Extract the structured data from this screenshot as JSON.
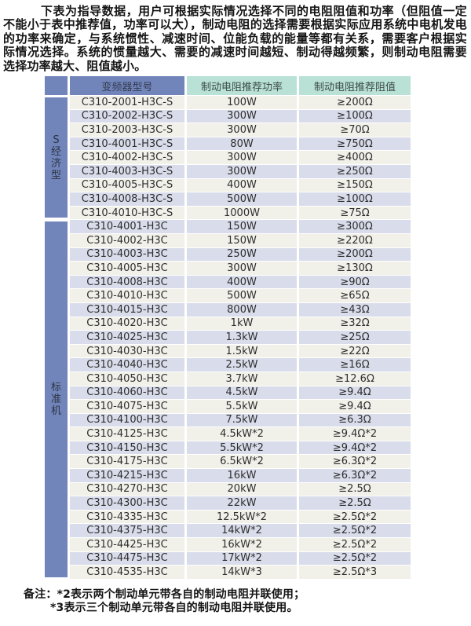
{
  "intro": {
    "text": "下表为指导数据，用户可根据实际情况选择不同的电阻阻值和功率（但阻值一定不能小于表中推荐值，功率可以大），制动电阻的选择需要根据实际应用系统中电机发电的功率来确定，与系统惯性、减速时间、位能负载的能量等都有关系，需要客户根据实际情况选择。系统的惯量越大、需要的减速时间越短、制动得越频繁，则制动电阻需要选择功率越大、阻值越小。"
  },
  "table": {
    "headers": {
      "model": "变频器型号",
      "power": "制动电阻推荐功率",
      "resistance": "制动电阻推荐阻值"
    },
    "groups": [
      {
        "key": "s-economy",
        "label": "S经济型",
        "rows": [
          {
            "model": "C310-2001-H3C-S",
            "power": "100W",
            "resistance": "≥200Ω"
          },
          {
            "model": "C310-2002-H3C-S",
            "power": "300W",
            "resistance": "≥100Ω"
          },
          {
            "model": "C310-2003-H3C-S",
            "power": "300W",
            "resistance": "≥70Ω"
          },
          {
            "model": "C310-4001-H3C-S",
            "power": "80W",
            "resistance": "≥750Ω"
          },
          {
            "model": "C310-4002-H3C-S",
            "power": "300W",
            "resistance": "≥400Ω"
          },
          {
            "model": "C310-4003-H3C-S",
            "power": "300W",
            "resistance": "≥250Ω"
          },
          {
            "model": "C310-4005-H3C-S",
            "power": "400W",
            "resistance": "≥150Ω"
          },
          {
            "model": "C310-4008-H3C-S",
            "power": "500W",
            "resistance": "≥100Ω"
          },
          {
            "model": "C310-4010-H3C-S",
            "power": "1000W",
            "resistance": "≥75Ω"
          }
        ]
      },
      {
        "key": "standard",
        "label": "标准机",
        "rows": [
          {
            "model": "C310-4001-H3C",
            "power": "150W",
            "resistance": "≥300Ω"
          },
          {
            "model": "C310-4002-H3C",
            "power": "150W",
            "resistance": "≥220Ω"
          },
          {
            "model": "C310-4003-H3C",
            "power": "250W",
            "resistance": "≥200Ω"
          },
          {
            "model": "C310-4005-H3C",
            "power": "300W",
            "resistance": "≥130Ω"
          },
          {
            "model": "C310-4008-H3C",
            "power": "400W",
            "resistance": "≥90Ω"
          },
          {
            "model": "C310-4010-H3C",
            "power": "500W",
            "resistance": "≥65Ω"
          },
          {
            "model": "C310-4015-H3C",
            "power": "800W",
            "resistance": "≥43Ω"
          },
          {
            "model": "C310-4020-H3C",
            "power": "1kW",
            "resistance": "≥32Ω"
          },
          {
            "model": "C310-4025-H3C",
            "power": "1.3kW",
            "resistance": "≥25Ω"
          },
          {
            "model": "C310-4030-H3C",
            "power": "1.5kW",
            "resistance": "≥22Ω"
          },
          {
            "model": "C310-4040-H3C",
            "power": "2.5kW",
            "resistance": "≥16Ω"
          },
          {
            "model": "C310-4050-H3C",
            "power": "3.7kW",
            "resistance": "≥12.6Ω"
          },
          {
            "model": "C310-4060-H3C",
            "power": "4.5kW",
            "resistance": "≥9.4Ω"
          },
          {
            "model": "C310-4075-H3C",
            "power": "5.5kW",
            "resistance": "≥9.4Ω"
          },
          {
            "model": "C310-4100-H3C",
            "power": "7.5kW",
            "resistance": "≥6.3Ω"
          },
          {
            "model": "C310-4125-H3C",
            "power": "4.5kW*2",
            "resistance": "≥9.4Ω*2"
          },
          {
            "model": "C310-4150-H3C",
            "power": "5.5kW*2",
            "resistance": "≥9.4Ω*2"
          },
          {
            "model": "C310-4175-H3C",
            "power": "6.5kW*2",
            "resistance": "≥6.3Ω*2"
          },
          {
            "model": "C310-4215-H3C",
            "power": "16kW",
            "resistance": "≥6.3Ω*2"
          },
          {
            "model": "C310-4270-H3C",
            "power": "20kW",
            "resistance": "≥2.5Ω"
          },
          {
            "model": "C310-4300-H3C",
            "power": "22kW",
            "resistance": "≥2.5Ω"
          },
          {
            "model": "C310-4335-H3C",
            "power": "12.5kW*2",
            "resistance": "≥2.5Ω*2"
          },
          {
            "model": "C310-4375-H3C",
            "power": "14kW*2",
            "resistance": "≥2.5Ω*2"
          },
          {
            "model": "C310-4425-H3C",
            "power": "16kW*2",
            "resistance": "≥2.5Ω*2"
          },
          {
            "model": "C310-4475-H3C",
            "power": "17kW*2",
            "resistance": "≥2.5Ω*2"
          },
          {
            "model": "C310-4535-H3C",
            "power": "14kW*3",
            "resistance": "≥2.5Ω*3"
          }
        ]
      }
    ]
  },
  "notes": {
    "label": "备注：",
    "lines": [
      "*2表示两个制动单元带各自的制动电阻并联使用；",
      "*3表示三个制动单元带各自的制动电阻并联使用。"
    ]
  },
  "colors": {
    "header_blue": "#7185bb",
    "header_teal": "#b9e1d5",
    "group_blue": "#7185bb",
    "row_light": "#f1f0e9",
    "row_lavender": "#d9dcea",
    "text_dark": "#2e2e2e"
  }
}
